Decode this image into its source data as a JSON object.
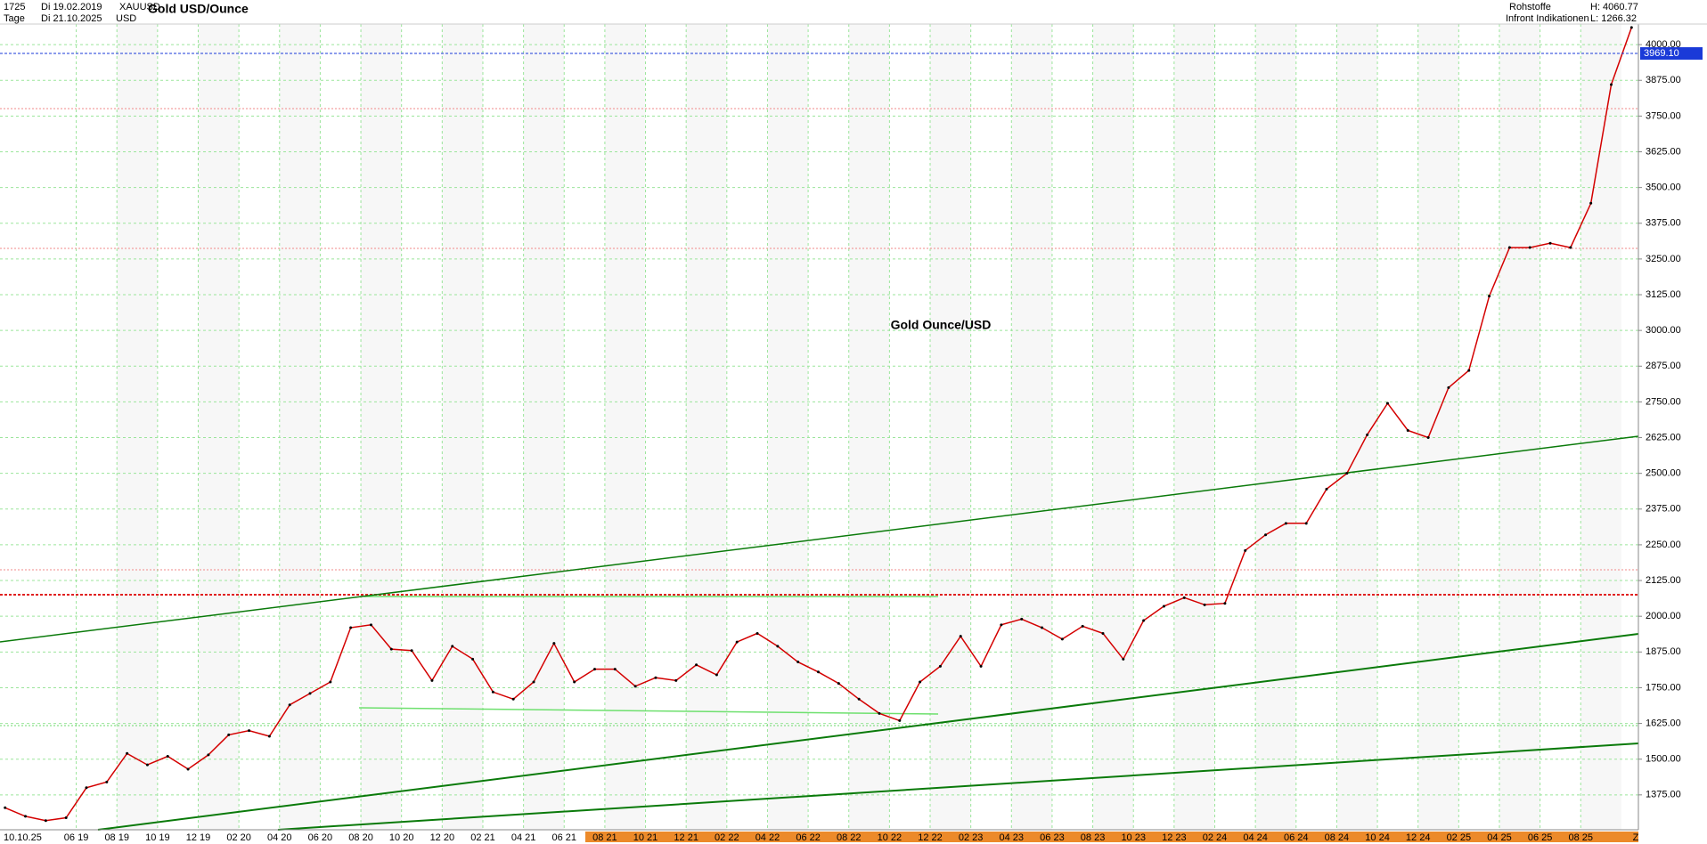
{
  "header": {
    "count": "1725",
    "period": "Tage",
    "from": "Di 19.02.2019",
    "to": "Di 21.10.2025",
    "symbol": "XAUUSD",
    "currency": "USD",
    "name": "Gold USD/Ounce",
    "group": "Rohstoffe",
    "source": "Infront Indikationen",
    "high": "H: 4060.77",
    "low": "L: 1266.32"
  },
  "chart_data": {
    "type": "line",
    "annotation": "Gold Ounce/USD",
    "cursor_date": "10.10.25",
    "axis_end_label": "Z",
    "categories": [
      null,
      null,
      null,
      null,
      "06 19",
      null,
      "08 19",
      null,
      "10 19",
      null,
      "12 19",
      null,
      "02 20",
      null,
      "04 20",
      null,
      "06 20",
      null,
      "08 20",
      null,
      "10 20",
      null,
      "12 20",
      null,
      "02 21",
      null,
      "04 21",
      null,
      "06 21",
      null,
      "08 21",
      null,
      "10 21",
      null,
      "12 21",
      null,
      "02 22",
      null,
      "04 22",
      null,
      "06 22",
      null,
      "08 22",
      null,
      "10 22",
      null,
      "12 22",
      null,
      "02 23",
      null,
      "04 23",
      null,
      "06 23",
      null,
      "08 23",
      null,
      "10 23",
      null,
      "12 23",
      null,
      "02 24",
      null,
      "04 24",
      null,
      "06 24",
      null,
      "08 24",
      null,
      "10 24",
      null,
      "12 24",
      null,
      "02 25",
      null,
      "04 25",
      null,
      "06 25",
      null,
      "08 25",
      null,
      null
    ],
    "values": [
      1330,
      1300,
      1285,
      1295,
      1400,
      1420,
      1520,
      1480,
      1510,
      1465,
      1515,
      1585,
      1600,
      1580,
      1690,
      1730,
      1770,
      1960,
      1970,
      1885,
      1880,
      1775,
      1895,
      1850,
      1735,
      1710,
      1770,
      1905,
      1770,
      1815,
      1815,
      1755,
      1785,
      1775,
      1830,
      1795,
      1910,
      1940,
      1895,
      1840,
      1805,
      1765,
      1710,
      1660,
      1635,
      1770,
      1825,
      1930,
      1825,
      1970,
      1990,
      1960,
      1920,
      1965,
      1940,
      1850,
      1985,
      2035,
      2065,
      2040,
      2045,
      2230,
      2285,
      2325,
      2325,
      2445,
      2500,
      2635,
      2745,
      2650,
      2625,
      2800,
      2860,
      3120,
      3290,
      3290,
      3305,
      3290,
      3445,
      3860,
      4060
    ],
    "color": "#d40000",
    "current_price": {
      "value": 3969.1,
      "label": "3969.10"
    },
    "ylim": [
      1253,
      4072
    ],
    "yticks": [
      {
        "value": 1375,
        "label": "1375.00"
      },
      {
        "value": 1500,
        "label": "1500.00"
      },
      {
        "value": 1625,
        "label": "1625.00"
      },
      {
        "value": 1750,
        "label": "1750.00"
      },
      {
        "value": 1875,
        "label": "1875.00"
      },
      {
        "value": 2000,
        "label": "2000.00"
      },
      {
        "value": 2125,
        "label": "2125.00"
      },
      {
        "value": 2250,
        "label": "2250.00"
      },
      {
        "value": 2375,
        "label": "2375.00"
      },
      {
        "value": 2500,
        "label": "2500.00"
      },
      {
        "value": 2625,
        "label": "2625.00"
      },
      {
        "value": 2750,
        "label": "2750.00"
      },
      {
        "value": 2875,
        "label": "2875.00"
      },
      {
        "value": 3000,
        "label": "3000.00"
      },
      {
        "value": 3125,
        "label": "3125.00"
      },
      {
        "value": 3250,
        "label": "3250.00"
      },
      {
        "value": 3375,
        "label": "3375.00"
      },
      {
        "value": 3500,
        "label": "3500.00"
      },
      {
        "value": 3625,
        "label": "3625.00"
      },
      {
        "value": 3750,
        "label": "3750.00"
      },
      {
        "value": 3875,
        "label": "3875.00"
      },
      {
        "value": 4000,
        "label": "4000.00"
      }
    ],
    "grid": true
  }
}
